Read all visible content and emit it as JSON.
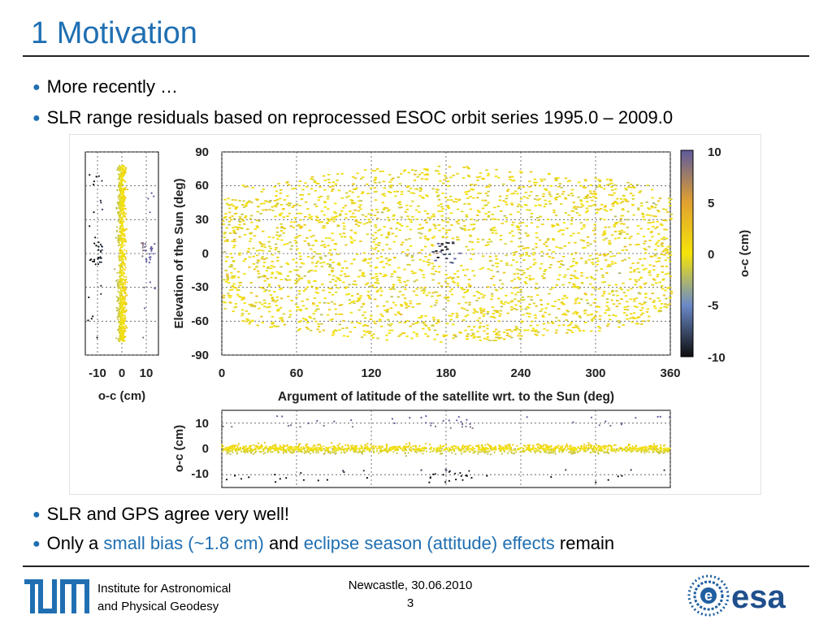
{
  "slide": {
    "title": "1 Motivation",
    "bullets_top": [
      {
        "text": "More recently …"
      },
      {
        "text": "SLR range residuals based on reprocessed ESOC orbit series 1995.0 – 2009.0"
      }
    ],
    "bullet3": "SLR and GPS agree very well!",
    "bullet4": {
      "prefix": "Only a ",
      "hl1": "small bias (~1.8 cm)",
      "mid": " and ",
      "hl2": "eclipse season (attitude) effects",
      "suffix": " remain"
    }
  },
  "footer": {
    "institute_line1": "Institute for Astronomical",
    "institute_line2": "and Physical Geodesy",
    "place_date": "Newcastle, 30.06.2010",
    "page_number": "3",
    "tum_logo_text": "TUM",
    "esa_logo_text": "esa"
  },
  "colors": {
    "title": "#1f6fb2",
    "highlight": "#1f6fb2",
    "colorbar": [
      "#101010",
      "#6a88c8",
      "#f2e20a",
      "#e2a030",
      "#6a5c9e"
    ]
  },
  "chart_data": [
    {
      "type": "scatter",
      "title": "",
      "xlabel": "Argument of latitude of the satellite wrt. to the Sun (deg)",
      "ylabel": "Elevation of the Sun (deg)",
      "xlim": [
        0,
        360
      ],
      "ylim": [
        -90,
        90
      ],
      "x_ticks": [
        "0",
        "60",
        "120",
        "180",
        "240",
        "300",
        "360"
      ],
      "y_ticks": [
        "90",
        "60",
        "30",
        "0",
        "-30",
        "-60",
        "-90"
      ],
      "grid": true,
      "color_variable": "o-c (cm)",
      "data_extent": {
        "elevation_range": [
          -78,
          78
        ]
      },
      "eclipse_cluster": {
        "x": 180,
        "y": 0,
        "note": "large residuals near x=180, elevation 0"
      }
    },
    {
      "type": "scatter",
      "xlabel": "o-c (cm)",
      "ylabel": "",
      "xlim": [
        -15,
        15
      ],
      "ylim": [
        -90,
        90
      ],
      "x_ticks": [
        "-10",
        "0",
        "10"
      ],
      "grid": true,
      "description_values": {
        "center": 0
      }
    },
    {
      "type": "scatter",
      "xlabel": "",
      "ylabel": "o-c (cm)",
      "xlim": [
        0,
        360
      ],
      "ylim": [
        -15,
        15
      ],
      "y_ticks": [
        "10",
        "0",
        "-10"
      ],
      "grid": true
    },
    {
      "type": "heatmap",
      "ylabel": "o-c (cm)",
      "range": [
        -10,
        10
      ],
      "ticks": [
        "10",
        "5",
        "0",
        "-5",
        "-10"
      ]
    }
  ]
}
